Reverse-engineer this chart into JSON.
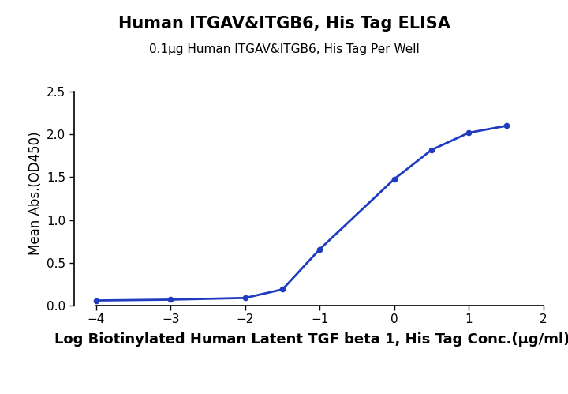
{
  "title": "Human ITGAV&ITGB6, His Tag ELISA",
  "subtitle": "0.1μg Human ITGAV&ITGB6, His Tag Per Well",
  "xlabel": "Log Biotinylated Human Latent TGF beta 1, His Tag Conc.(μg/ml)",
  "ylabel": "Mean Abs.(OD450)",
  "x_data": [
    -4,
    -3,
    -2,
    -1.5,
    -1,
    0,
    0.5,
    1,
    1.5
  ],
  "y_data": [
    0.06,
    0.07,
    0.09,
    0.19,
    0.66,
    1.48,
    1.82,
    2.02,
    2.1
  ],
  "xlim": [
    -4.3,
    2.1
  ],
  "ylim": [
    -0.02,
    2.65
  ],
  "xticks": [
    -4,
    -3,
    -2,
    -1,
    0,
    1,
    2
  ],
  "yticks": [
    0.0,
    0.5,
    1.0,
    1.5,
    2.0,
    2.5
  ],
  "line_color": "#1f3bbf",
  "marker_color": "#1f3bbf",
  "bg_color": "#ffffff",
  "title_fontsize": 15,
  "subtitle_fontsize": 11,
  "xlabel_fontsize": 13,
  "ylabel_fontsize": 12,
  "tick_fontsize": 11
}
